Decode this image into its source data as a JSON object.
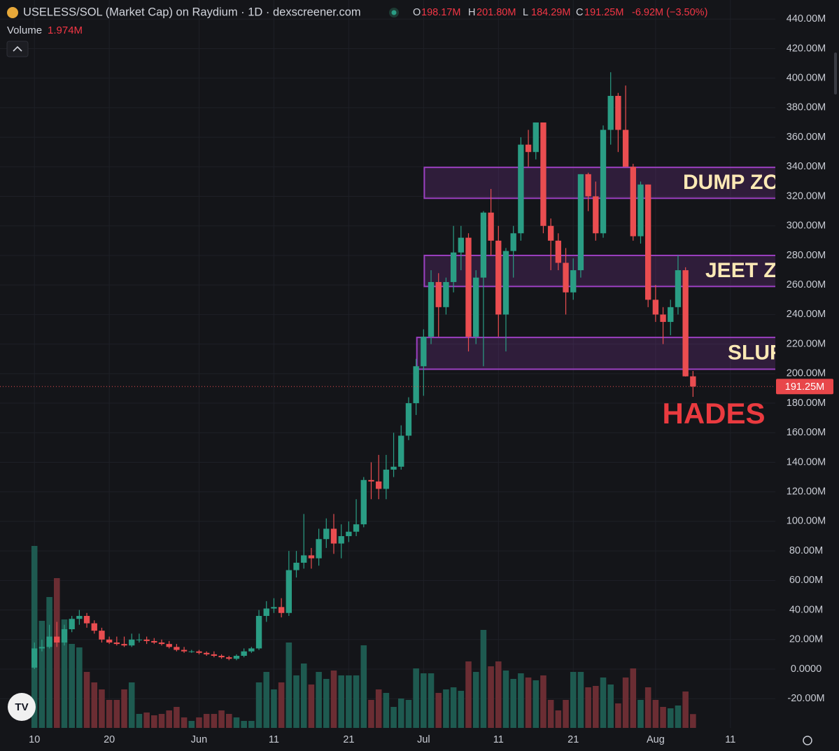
{
  "chart_data": {
    "type": "candlestick",
    "title": "USELESS/SOL (Market Cap) on Raydium · 1D · dexscreener.com",
    "ohlc": [
      {
        "name": "O",
        "value": 198.17,
        "label": "198.17M"
      },
      {
        "name": "H",
        "value": 201.8,
        "label": "201.80M"
      },
      {
        "name": "L",
        "value": 184.29,
        "label": "184.29M"
      },
      {
        "name": "C",
        "value": 191.25,
        "label": "191.25M"
      }
    ],
    "change": {
      "value": -6.92,
      "label": "-6.92M (−3.50%)"
    },
    "volume_name": "Volume",
    "volume_last": {
      "value": 1.974,
      "label": "1.974M"
    },
    "last_price": {
      "value": 191.25,
      "label": "191.25M"
    },
    "up_color": "#2a9d84",
    "down_color": "#ea4d50",
    "volume_up_color": "#1e5a50",
    "volume_down_color": "#6b2d33",
    "zone_color": "#9b3fc0",
    "open": [
      1,
      14,
      15,
      22,
      18,
      27,
      34,
      36,
      31,
      26,
      20,
      18,
      17,
      16,
      20,
      20,
      19,
      18,
      17,
      15,
      13,
      12,
      12,
      11,
      10,
      9,
      8,
      7,
      9,
      12,
      14,
      36,
      41,
      42,
      38,
      67,
      72,
      77,
      75,
      88,
      95,
      85,
      90,
      93,
      98,
      128,
      127,
      122,
      135,
      137,
      158,
      180,
      205,
      225,
      262,
      245,
      262,
      282,
      292,
      225,
      265,
      309,
      290,
      240,
      283,
      295,
      355,
      350,
      370,
      300,
      290,
      275,
      255,
      270,
      335,
      320,
      295,
      365,
      388,
      365,
      340,
      293,
      328,
      250,
      240,
      235,
      245,
      270,
      198.17
    ],
    "high": [
      18,
      20,
      30,
      32,
      30,
      36,
      40,
      38,
      33,
      28,
      22,
      22,
      22,
      24,
      24,
      22,
      21,
      20,
      19,
      17,
      15,
      13,
      13,
      12,
      12,
      10,
      9,
      10,
      14,
      15,
      40,
      46,
      48,
      48,
      80,
      80,
      105,
      82,
      95,
      102,
      105,
      98,
      100,
      115,
      130,
      140,
      145,
      145,
      160,
      165,
      184,
      210,
      230,
      270,
      268,
      265,
      300,
      300,
      295,
      270,
      310,
      325,
      300,
      285,
      300,
      360,
      365,
      370,
      370,
      305,
      295,
      285,
      278,
      335,
      336,
      330,
      368,
      404,
      390,
      395,
      342,
      330,
      328,
      260,
      245,
      250,
      280,
      272,
      201.8
    ],
    "low": [
      0,
      12,
      14,
      15,
      16,
      25,
      30,
      28,
      24,
      18,
      17,
      16,
      15,
      15,
      18,
      17,
      17,
      16,
      14,
      12,
      11,
      11,
      10,
      9,
      8,
      7,
      6,
      6,
      8,
      11,
      13,
      32,
      38,
      35,
      36,
      62,
      68,
      68,
      70,
      82,
      78,
      75,
      86,
      90,
      96,
      115,
      115,
      115,
      130,
      135,
      155,
      172,
      185,
      220,
      225,
      240,
      255,
      270,
      215,
      220,
      205,
      280,
      225,
      215,
      265,
      290,
      340,
      345,
      295,
      270,
      270,
      240,
      250,
      265,
      310,
      290,
      292,
      355,
      350,
      340,
      290,
      288,
      245,
      235,
      220,
      226,
      240,
      198,
      184.29
    ],
    "close": [
      14,
      15,
      22,
      18,
      27,
      34,
      36,
      31,
      26,
      20,
      18,
      17,
      16,
      20,
      20,
      19,
      18,
      17,
      15,
      13,
      12,
      12,
      11,
      10,
      9,
      8,
      7,
      9,
      12,
      14,
      36,
      41,
      42,
      38,
      67,
      72,
      77,
      75,
      88,
      95,
      85,
      90,
      93,
      98,
      128,
      127,
      122,
      135,
      137,
      158,
      180,
      205,
      225,
      262,
      245,
      262,
      282,
      292,
      225,
      265,
      309,
      290,
      240,
      283,
      295,
      355,
      350,
      370,
      300,
      290,
      275,
      255,
      270,
      335,
      320,
      295,
      365,
      388,
      365,
      340,
      293,
      328,
      250,
      240,
      235,
      245,
      270,
      198.17,
      191.25
    ],
    "volume": [
      26,
      15.3,
      18.7,
      21.4,
      15.5,
      12,
      11.5,
      8,
      6.5,
      5.5,
      4,
      4,
      5.5,
      6.5,
      2,
      2.2,
      1.8,
      2,
      2.5,
      3,
      1.5,
      1,
      1.5,
      2,
      2,
      2.5,
      2,
      1.5,
      1,
      1,
      6.5,
      8,
      5.5,
      6.5,
      12.2,
      7.5,
      9.2,
      6.2,
      8,
      7,
      8.2,
      7.5,
      7.5,
      7.5,
      11.8,
      4,
      5.5,
      5,
      3,
      4.2,
      4,
      8.5,
      7.8,
      7.8,
      5,
      5.5,
      5.8,
      5.3,
      9.5,
      8,
      14,
      8.8,
      9.5,
      8.2,
      7,
      7.8,
      7.2,
      6.8,
      7.5,
      4,
      2.5,
      4,
      8,
      8,
      5.8,
      6,
      7.2,
      6.2,
      3.5,
      7.2,
      8.5,
      4,
      5.8,
      4,
      3,
      2.8,
      3.2,
      5.2,
      1.974
    ],
    "zones": [
      {
        "label": "DUMP ZO",
        "from": 52.1,
        "range": [
          318.7,
          339.6
        ]
      },
      {
        "label": "JEET ZO",
        "from": 52.1,
        "range": [
          259.0,
          280.0
        ]
      },
      {
        "label": "SLUR",
        "from": 51.1,
        "range": [
          203.0,
          224.5
        ]
      }
    ],
    "annotation": "HADES",
    "xlim": [
      -4.6,
      99
    ],
    "ylim": [
      -39.8,
      452.9
    ],
    "yticks": [
      {
        "value": 440,
        "label": "440.00M"
      },
      {
        "value": 420,
        "label": "420.00M"
      },
      {
        "value": 400,
        "label": "400.00M"
      },
      {
        "value": 380,
        "label": "380.00M"
      },
      {
        "value": 360,
        "label": "360.00M"
      },
      {
        "value": 340,
        "label": "340.00M"
      },
      {
        "value": 320,
        "label": "320.00M"
      },
      {
        "value": 300,
        "label": "300.00M"
      },
      {
        "value": 280,
        "label": "280.00M"
      },
      {
        "value": 260,
        "label": "260.00M"
      },
      {
        "value": 240,
        "label": "240.00M"
      },
      {
        "value": 220,
        "label": "220.00M"
      },
      {
        "value": 200,
        "label": "200.00M"
      },
      {
        "value": 180,
        "label": "180.00M"
      },
      {
        "value": 160,
        "label": "160.00M"
      },
      {
        "value": 140,
        "label": "140.00M"
      },
      {
        "value": 120,
        "label": "120.00M"
      },
      {
        "value": 100,
        "label": "100.00M"
      },
      {
        "value": 80,
        "label": "80.00M"
      },
      {
        "value": 60,
        "label": "60.00M"
      },
      {
        "value": 40,
        "label": "40.00M"
      },
      {
        "value": 20,
        "label": "20.00M"
      },
      {
        "value": 0,
        "label": "0.0000"
      },
      {
        "value": -20,
        "label": "-20.00M"
      }
    ],
    "xticks": [
      {
        "value": 0,
        "label": "10"
      },
      {
        "value": 10,
        "label": "20"
      },
      {
        "value": 22,
        "label": "Jun"
      },
      {
        "value": 32,
        "label": "11"
      },
      {
        "value": 42,
        "label": "21"
      },
      {
        "value": 52,
        "label": "Jul"
      },
      {
        "value": 62,
        "label": "11"
      },
      {
        "value": 72,
        "label": "21"
      },
      {
        "value": 83,
        "label": "Aug"
      },
      {
        "value": 93,
        "label": "11"
      }
    ],
    "grid": true
  }
}
